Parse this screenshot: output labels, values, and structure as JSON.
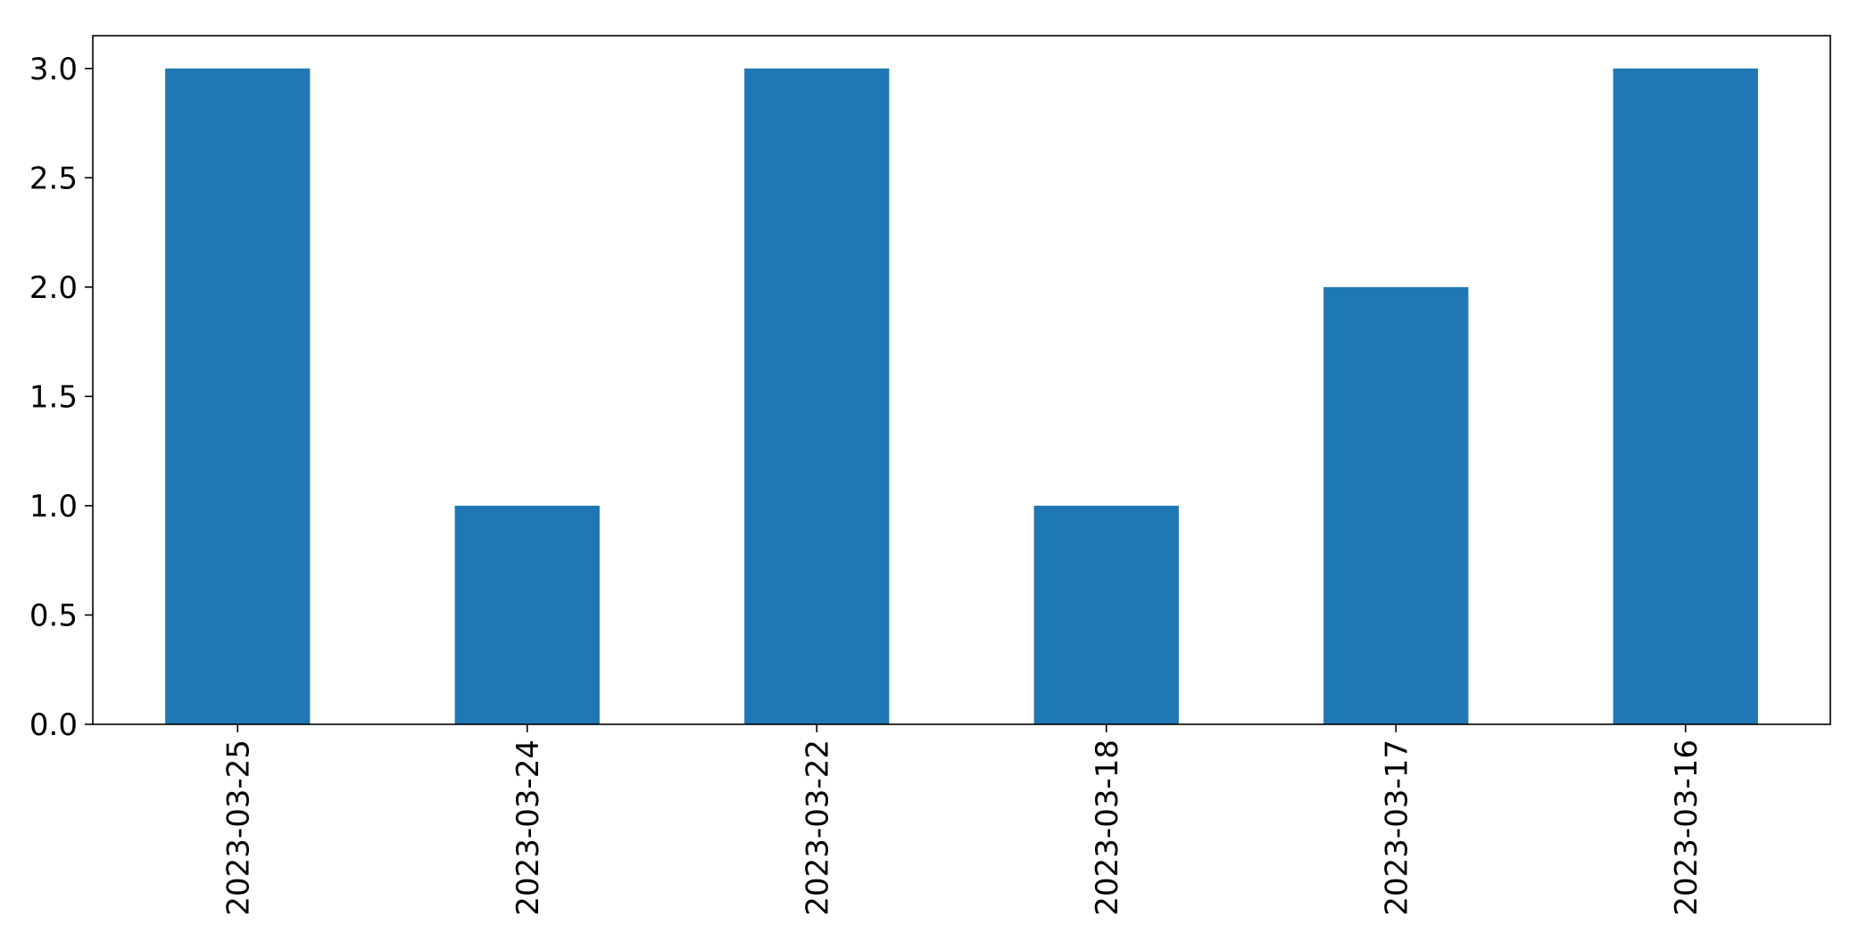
{
  "chart_data": {
    "type": "bar",
    "title": "",
    "xlabel": "",
    "ylabel": "",
    "categories": [
      "2023-03-25",
      "2023-03-24",
      "2023-03-22",
      "2023-03-18",
      "2023-03-17",
      "2023-03-16"
    ],
    "values": [
      3,
      1,
      3,
      1,
      2,
      3
    ],
    "ylim": [
      0,
      3.15
    ],
    "yticks": [
      0.0,
      0.5,
      1.0,
      1.5,
      2.0,
      2.5,
      3.0
    ],
    "ytick_labels": [
      "0.0",
      "0.5",
      "1.0",
      "1.5",
      "2.0",
      "2.5",
      "3.0"
    ],
    "bar_color": "#1f77b4",
    "grid": false,
    "legend": "none",
    "x_tick_rotation": "vertical"
  }
}
